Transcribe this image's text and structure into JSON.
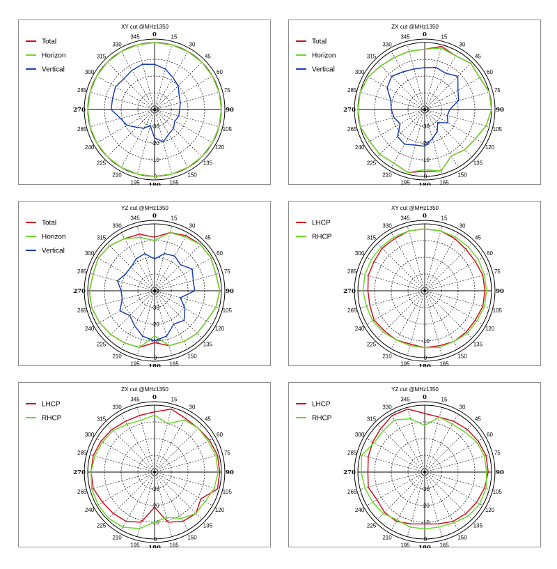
{
  "colors": {
    "total": "#d01020",
    "horizon": "#6ad82a",
    "vertical": "#1a3fb5",
    "lhcp": "#d01020",
    "rhcp": "#6ad82a"
  },
  "chart_data": [
    {
      "type": "polar",
      "title": "XY cut @MHz1350",
      "angle_labels": [
        "0",
        "15",
        "30",
        "45",
        "60",
        "75",
        "90",
        "105",
        "120",
        "135",
        "150",
        "165",
        "180",
        "195",
        "210",
        "225",
        "240",
        "265",
        "270",
        "285",
        "300",
        "315",
        "330",
        "345"
      ],
      "radial_labels": [
        "-40",
        "-30",
        "-20",
        "-10",
        "0"
      ],
      "rlim": [
        -40,
        0
      ],
      "legend": [
        "Total",
        "Horizon",
        "Vertical"
      ],
      "series": [
        {
          "name": "Total",
          "color_key": "total",
          "values": [
            0,
            0,
            0,
            0,
            0,
            0,
            0,
            0,
            0,
            0,
            0,
            0,
            0,
            0,
            0,
            0,
            0,
            0,
            0,
            0,
            0,
            0,
            0,
            0
          ]
        },
        {
          "name": "Horizon",
          "color_key": "horizon",
          "values": [
            0,
            0,
            0,
            0,
            0,
            0,
            0,
            0,
            0,
            0,
            0,
            0,
            0,
            0,
            0,
            0,
            0,
            0,
            0,
            0,
            0,
            0,
            0,
            0
          ]
        },
        {
          "name": "Vertical",
          "color_key": "vertical",
          "values": [
            -13,
            -15,
            -18,
            -20,
            -23,
            -24,
            -25,
            -25,
            -26,
            -24,
            -23,
            -20,
            -23,
            -30,
            -27,
            -25,
            -21,
            -19,
            -14,
            -14,
            -13,
            -14,
            -13,
            -12
          ]
        }
      ]
    },
    {
      "type": "polar",
      "title": "ZX cut @MHz1350",
      "angle_labels": [
        "0",
        "15",
        "30",
        "45",
        "60",
        "75",
        "90",
        "105",
        "120",
        "135",
        "150",
        "165",
        "180",
        "195",
        "210",
        "225",
        "240",
        "265",
        "270",
        "285",
        "300",
        "315",
        "330",
        "345"
      ],
      "radial_labels": [
        "-40",
        "-30",
        "-20",
        "-10",
        "0"
      ],
      "rlim": [
        -40,
        0
      ],
      "legend": [
        "Total",
        "Horizon",
        "Vertical"
      ],
      "series": [
        {
          "name": "Total",
          "color_key": "total",
          "values": [
            -4,
            -1,
            -3,
            -1,
            -2,
            0,
            0,
            -2,
            -5,
            -6,
            -8,
            -2,
            -3,
            -1,
            -3,
            -2,
            -2,
            0,
            0,
            0,
            -1,
            -3,
            -4,
            -4
          ]
        },
        {
          "name": "Horizon",
          "color_key": "horizon",
          "values": [
            -4,
            -2,
            -3,
            -1,
            -2,
            0,
            0,
            -2,
            -5,
            -6,
            -8,
            -2,
            -4,
            -1,
            -3,
            -2,
            -2,
            0,
            0,
            0,
            -1,
            -3,
            -4,
            -4
          ]
        },
        {
          "name": "Vertical",
          "color_key": "vertical",
          "values": [
            -15,
            -14,
            -15,
            -12,
            -17,
            -19,
            -25,
            -26,
            -24,
            -29,
            -25,
            -22,
            -18,
            -18,
            -16,
            -17,
            -23,
            -21,
            -20,
            -19,
            -14,
            -12,
            -14,
            -15
          ]
        }
      ]
    },
    {
      "type": "polar",
      "title": "YZ cut @MHz1350",
      "angle_labels": [
        "0",
        "15",
        "30",
        "45",
        "60",
        "75",
        "90",
        "105",
        "120",
        "135",
        "150",
        "165",
        "180",
        "195",
        "210",
        "225",
        "240",
        "265",
        "270",
        "285",
        "300",
        "315",
        "330",
        "345"
      ],
      "radial_labels": [
        "-40",
        "-30",
        "-20",
        "-10",
        "0"
      ],
      "rlim": [
        -40,
        0
      ],
      "legend": [
        "Total",
        "Horizon",
        "Vertical"
      ],
      "series": [
        {
          "name": "Total",
          "color_key": "total",
          "values": [
            -8,
            -4,
            -2,
            -1,
            -1,
            -2,
            -1,
            -2,
            -4,
            -4,
            -5,
            -6,
            -9,
            -5,
            -4,
            -3,
            -2,
            -1,
            -1,
            -2,
            -1,
            -2,
            -4,
            -5
          ]
        },
        {
          "name": "Horizon",
          "color_key": "horizon",
          "values": [
            -10,
            -4,
            -3,
            -1,
            -1,
            -2,
            -1,
            -2,
            -4,
            -4,
            -5,
            -6,
            -13,
            -5,
            -4,
            -3,
            -2,
            -1,
            -1,
            -2,
            -1,
            -2,
            -4,
            -7
          ]
        },
        {
          "name": "Vertical",
          "color_key": "vertical",
          "values": [
            -21,
            -17,
            -16,
            -18,
            -14,
            -16,
            -16,
            -24,
            -19,
            -15,
            -17,
            -12,
            -10,
            -12,
            -16,
            -19,
            -16,
            -20,
            -20,
            -17,
            -20,
            -20,
            -18,
            -17
          ]
        }
      ]
    },
    {
      "type": "polar",
      "title": "XY cut @MHz1350",
      "angle_labels": [
        "0",
        "15",
        "30",
        "45",
        "60",
        "75",
        "90",
        "105",
        "120",
        "135",
        "150",
        "165",
        "180",
        "195",
        "210",
        "225",
        "240",
        "265",
        "270",
        "285",
        "300",
        "315",
        "330",
        "345"
      ],
      "radial_labels": [
        "-10",
        "0"
      ],
      "rlim": [
        -40,
        0
      ],
      "legend": [
        "LHCP",
        "RHCP"
      ],
      "series": [
        {
          "name": "LHCP",
          "color_key": "lhcp",
          "values": [
            -3,
            -3,
            -4,
            -5,
            -5,
            -4,
            -4,
            -4,
            -5,
            -5,
            -5,
            -6,
            -6,
            -7,
            -6,
            -6,
            -5,
            -6,
            -6,
            -5,
            -5,
            -4,
            -4,
            -3
          ]
        },
        {
          "name": "RHCP",
          "color_key": "rhcp",
          "values": [
            -3,
            -3,
            -3,
            -3,
            -3,
            -3,
            -3,
            -3,
            -4,
            -4,
            -5,
            -5,
            -6,
            -6,
            -6,
            -5,
            -4,
            -4,
            -3,
            -3,
            -3,
            -3,
            -3,
            -3
          ]
        }
      ]
    },
    {
      "type": "polar",
      "title": "ZX cut @MHz1350",
      "angle_labels": [
        "0",
        "15",
        "30",
        "45",
        "60",
        "75",
        "90",
        "105",
        "120",
        "135",
        "150",
        "165",
        "180",
        "195",
        "210",
        "225",
        "240",
        "265",
        "270",
        "285",
        "300",
        "315",
        "330",
        "345"
      ],
      "radial_labels": [
        "-30",
        "-20",
        "-10",
        "0"
      ],
      "rlim": [
        -40,
        0
      ],
      "legend": [
        "LHCP",
        "RHCP"
      ],
      "series": [
        {
          "name": "LHCP",
          "color_key": "lhcp",
          "values": [
            -4,
            -1,
            -3,
            -3,
            -2,
            -1,
            -1,
            -1,
            -8,
            -5,
            -6,
            -9,
            -19,
            -9,
            -6,
            -5,
            -4,
            -2,
            -2,
            -2,
            -3,
            -4,
            -5,
            -5
          ]
        },
        {
          "name": "RHCP",
          "color_key": "rhcp",
          "values": [
            -6,
            -10,
            -4,
            -3,
            -3,
            -2,
            -2,
            -3,
            -5,
            -5,
            -8,
            -12,
            -10,
            -5,
            -2,
            -1,
            -1,
            -1,
            -2,
            -3,
            -4,
            -5,
            -7,
            -8
          ]
        }
      ]
    },
    {
      "type": "polar",
      "title": "YZ cut @MHz1350",
      "angle_labels": [
        "0",
        "15",
        "30",
        "45",
        "60",
        "75",
        "90",
        "105",
        "120",
        "135",
        "150",
        "165",
        "180",
        "195",
        "210",
        "225",
        "240",
        "265",
        "270",
        "285",
        "300",
        "315",
        "330",
        "345"
      ],
      "radial_labels": [
        "-30",
        "-20",
        "-10",
        "0"
      ],
      "rlim": [
        -40,
        0
      ],
      "legend": [
        "LHCP",
        "RHCP"
      ],
      "series": [
        {
          "name": "LHCP",
          "color_key": "lhcp",
          "values": [
            -5,
            -6,
            -5,
            -4,
            -3,
            -2,
            -2,
            -3,
            -4,
            -5,
            -6,
            -8,
            -9,
            -8,
            -6,
            -6,
            -7,
            -5,
            -6,
            -5,
            -4,
            -3,
            -1,
            -1
          ]
        },
        {
          "name": "RHCP",
          "color_key": "rhcp",
          "values": [
            -12,
            -6,
            -7,
            -6,
            -4,
            -3,
            -3,
            -2,
            -2,
            -3,
            -5,
            -6,
            -6,
            -6,
            -7,
            -5,
            -4,
            -3,
            -2,
            -1,
            -5,
            -5,
            -4,
            -7
          ]
        }
      ]
    }
  ]
}
